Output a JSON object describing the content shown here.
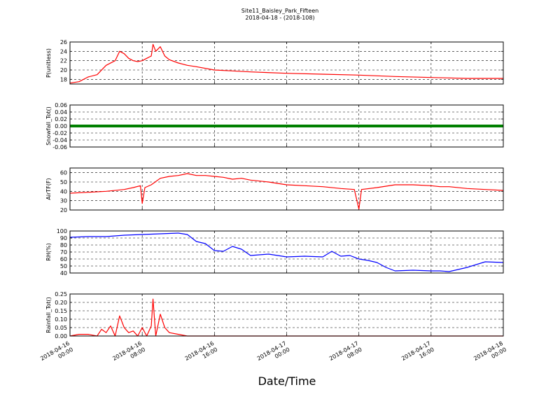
{
  "title": "Site11_Baisley_Park_Fifteen",
  "subtitle": "2018-04-18 - (2018-108)",
  "x_axis": {
    "label": "Date/Time",
    "ticks": [
      {
        "hours": 0,
        "line1": "2018-04-16",
        "line2": "00:00"
      },
      {
        "hours": 8,
        "line1": "2018-04-16",
        "line2": "08:00"
      },
      {
        "hours": 16,
        "line1": "2018-04-16",
        "line2": "16:00"
      },
      {
        "hours": 24,
        "line1": "2018-04-17",
        "line2": "00:00"
      },
      {
        "hours": 32,
        "line1": "2018-04-17",
        "line2": "08:00"
      },
      {
        "hours": 40,
        "line1": "2018-04-17",
        "line2": "16:00"
      },
      {
        "hours": 48,
        "line1": "2018-04-18",
        "line2": "00:00"
      }
    ],
    "range_hours": [
      0,
      48
    ]
  },
  "chart_data": [
    {
      "type": "line",
      "ylabel": "P(unitless)",
      "color": "#ff0000",
      "ylim": [
        17,
        26
      ],
      "yticks": [
        "18",
        "20",
        "22",
        "24",
        "26"
      ],
      "grid": true,
      "x": [
        0,
        1,
        2,
        3,
        4,
        5,
        5.5,
        6,
        6.5,
        7,
        7.5,
        8,
        8.5,
        9,
        9.2,
        9.5,
        10,
        10.5,
        11,
        12,
        13,
        14,
        16,
        18,
        20,
        24,
        28,
        32,
        36,
        40,
        44,
        48
      ],
      "y": [
        17.2,
        17.5,
        18.5,
        19,
        21,
        22,
        24,
        23.5,
        22.5,
        22,
        21.8,
        22,
        22.5,
        23,
        25.5,
        24,
        25,
        23,
        22.2,
        21.5,
        21,
        20.7,
        20,
        19.8,
        19.6,
        19.3,
        19.1,
        18.9,
        18.6,
        18.4,
        18.2,
        18.2
      ]
    },
    {
      "type": "scatter",
      "ylabel": "Snowfall_Tot()",
      "color": "#008000",
      "ylim": [
        -0.06,
        0.06
      ],
      "yticks": [
        "0.06",
        "0.04",
        "0.02",
        "0.00",
        "-0.02",
        "-0.04",
        "-0.06"
      ],
      "grid": true,
      "x": [
        0,
        48
      ],
      "y": [
        0.0,
        0.0
      ]
    },
    {
      "type": "line",
      "ylabel": "AirTF(F)",
      "color": "#ff0000",
      "ylim": [
        20,
        65
      ],
      "yticks": [
        "60",
        "50",
        "40",
        "30",
        "20"
      ],
      "grid": true,
      "x": [
        0,
        2,
        4,
        6,
        7,
        7.8,
        8,
        8.3,
        9,
        10,
        11,
        12,
        13,
        14,
        15,
        16,
        17,
        18,
        19,
        20,
        22,
        24,
        26,
        28,
        30,
        31.5,
        32,
        32.3,
        34,
        36,
        38,
        40,
        41,
        42,
        44,
        46,
        48
      ],
      "y": [
        38,
        39,
        40,
        42,
        44,
        46,
        27,
        44,
        47,
        54,
        56,
        57,
        59,
        57,
        57,
        56,
        55,
        53,
        54,
        52,
        50,
        47,
        46,
        45,
        43,
        42,
        21,
        42,
        44,
        47,
        47,
        46,
        45,
        45,
        43,
        42,
        41
      ]
    },
    {
      "type": "line",
      "ylabel": "RH(%)",
      "color": "#0000ff",
      "ylim": [
        40,
        100
      ],
      "yticks": [
        "100",
        "90",
        "80",
        "70",
        "60",
        "50",
        "40"
      ],
      "grid": true,
      "x": [
        0,
        2,
        4,
        6,
        8,
        10,
        12,
        13,
        14,
        15,
        16,
        17,
        18,
        19,
        20,
        22,
        24,
        26,
        28,
        29,
        30,
        31,
        32,
        33,
        34,
        35,
        36,
        38,
        40,
        41,
        42,
        44,
        46,
        48
      ],
      "y": [
        91,
        92,
        92,
        94,
        95,
        96,
        97,
        95,
        85,
        82,
        72,
        71,
        78,
        74,
        65,
        67,
        63,
        64,
        63,
        71,
        64,
        65,
        60,
        58,
        55,
        48,
        43,
        44,
        43,
        43,
        42,
        48,
        56,
        55
      ]
    },
    {
      "type": "line",
      "ylabel": "Rainfall_Tot()",
      "color": "#ff0000",
      "ylim": [
        0,
        0.25
      ],
      "yticks": [
        "0.25",
        "0.20",
        "0.15",
        "0.10",
        "0.05",
        "0.00"
      ],
      "grid": true,
      "x": [
        0,
        1,
        2,
        3,
        3.5,
        4,
        4.5,
        5,
        5.5,
        6,
        6.5,
        7,
        7.5,
        8,
        8.5,
        9,
        9.2,
        9.5,
        10,
        10.5,
        11,
        12,
        13,
        14,
        16,
        48
      ],
      "y": [
        0,
        0.01,
        0.01,
        0,
        0.04,
        0.02,
        0.06,
        0,
        0.12,
        0.05,
        0.02,
        0.03,
        0,
        0.05,
        0,
        0.06,
        0.22,
        0,
        0.13,
        0.05,
        0.02,
        0.01,
        0,
        0,
        0,
        0
      ]
    }
  ]
}
